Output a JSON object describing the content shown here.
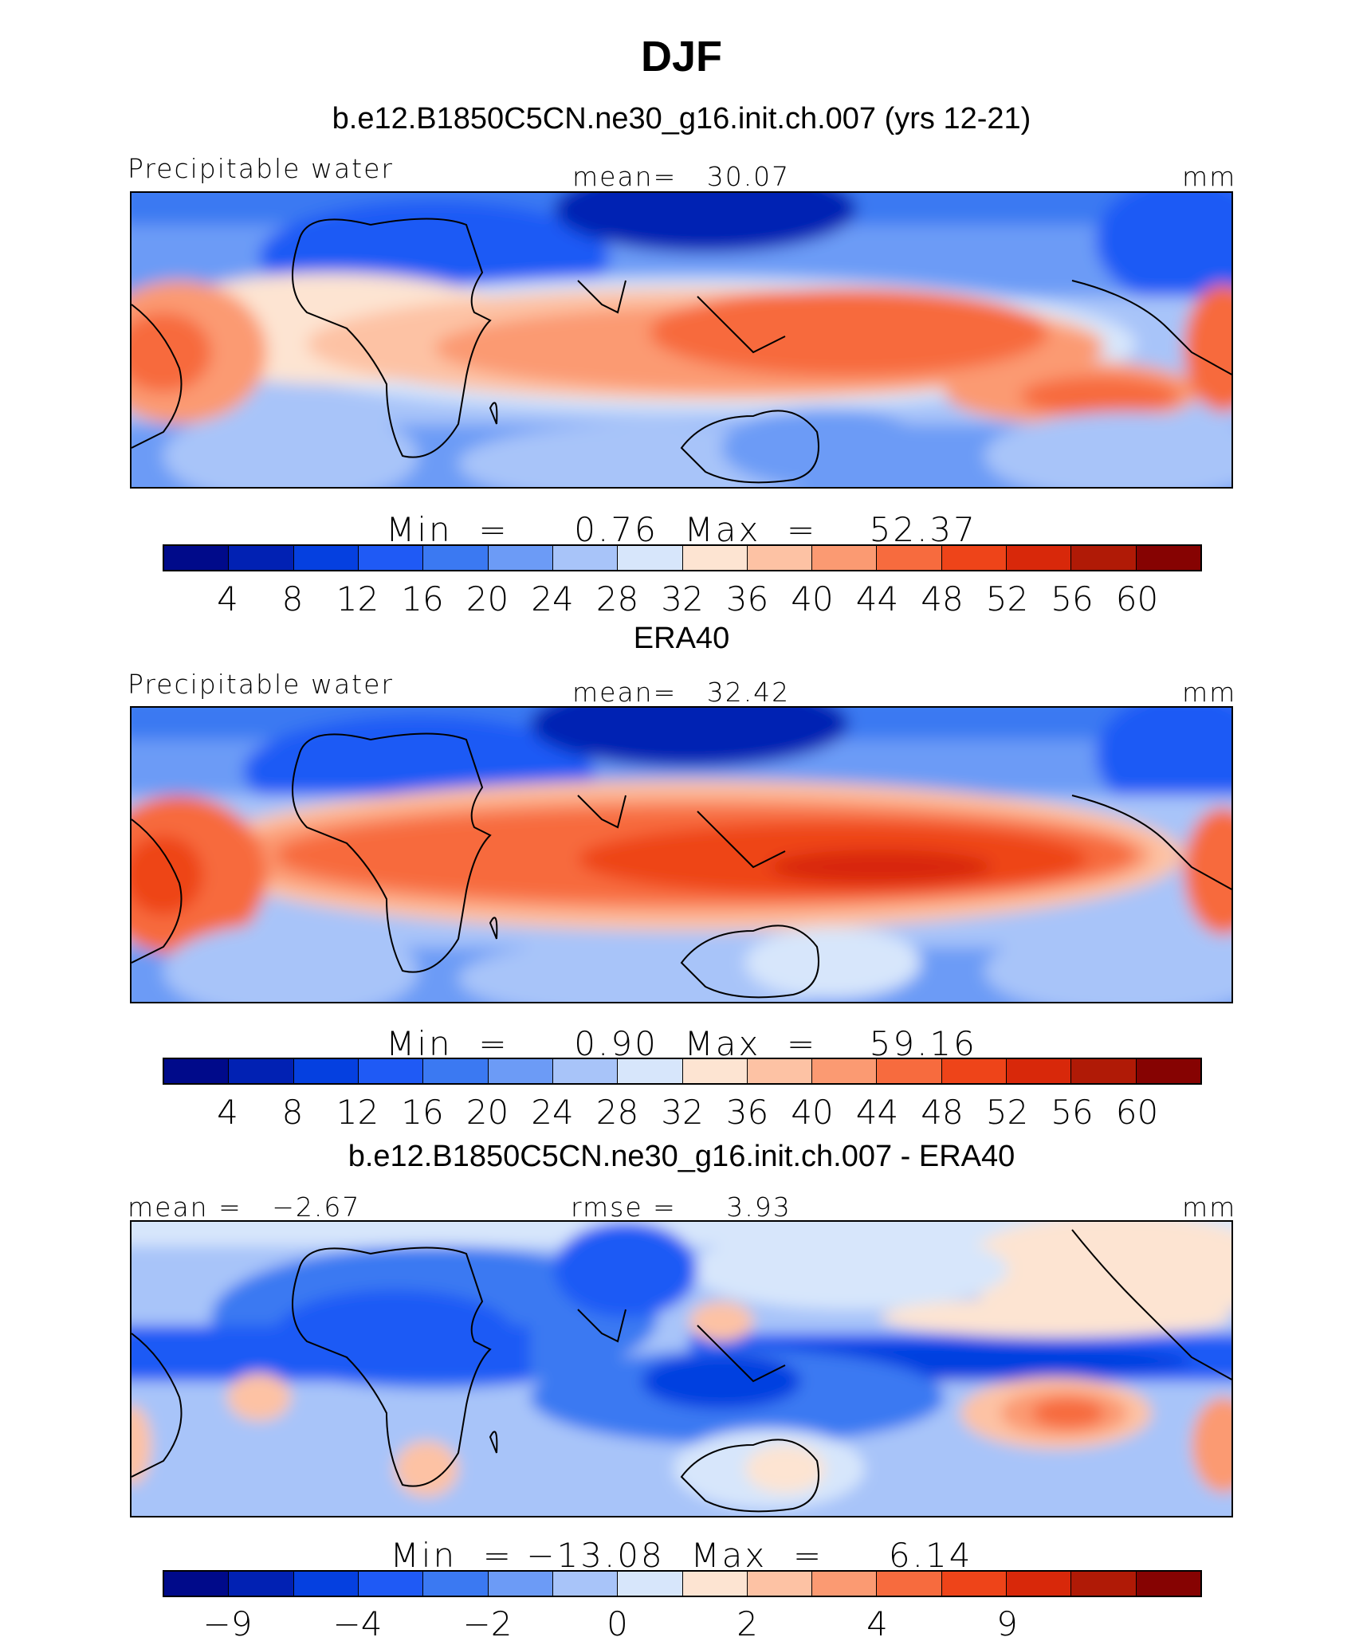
{
  "title": "DJF",
  "palette": [
    "#000a8a",
    "#0121b3",
    "#0540e0",
    "#1f5af5",
    "#3b79f2",
    "#6c9bf6",
    "#a8c4f9",
    "#d7e6fb",
    "#fde4d2",
    "#fdc2a4",
    "#fb9a72",
    "#f76b3e",
    "#ee4419",
    "#d8280a",
    "#b01a06",
    "#860302"
  ],
  "panels": [
    {
      "title": "b.e12.B1850C5CN.ne30_g16.init.ch.007 (yrs 12-21)",
      "left_label": "Precipitable water",
      "center_label": "mean=   30.07",
      "right_label": "mm",
      "min_max": "Min  =     0.76  Max  =    52.37",
      "ticks": [
        "4",
        "8",
        "12",
        "16",
        "20",
        "24",
        "28",
        "32",
        "36",
        "40",
        "44",
        "48",
        "52",
        "56",
        "60"
      ]
    },
    {
      "title": "ERA40",
      "left_label": "Precipitable water",
      "center_label": "mean=   32.42",
      "right_label": "mm",
      "min_max": "Min  =     0.90  Max  =    59.16",
      "ticks": [
        "4",
        "8",
        "12",
        "16",
        "20",
        "24",
        "28",
        "32",
        "36",
        "40",
        "44",
        "48",
        "52",
        "56",
        "60"
      ]
    },
    {
      "title": "b.e12.B1850C5CN.ne30_g16.init.ch.007 - ERA40",
      "left_label": "mean =   −2.67",
      "center_label": "rmse =     3.93",
      "right_label": "mm",
      "min_max": "Min  = −13.08  Max  =     6.14",
      "ticks": [
        "−9",
        "",
        "−4",
        "",
        "−2",
        "",
        "0",
        "",
        "2",
        "",
        "4",
        "",
        "9",
        ""
      ]
    }
  ]
}
